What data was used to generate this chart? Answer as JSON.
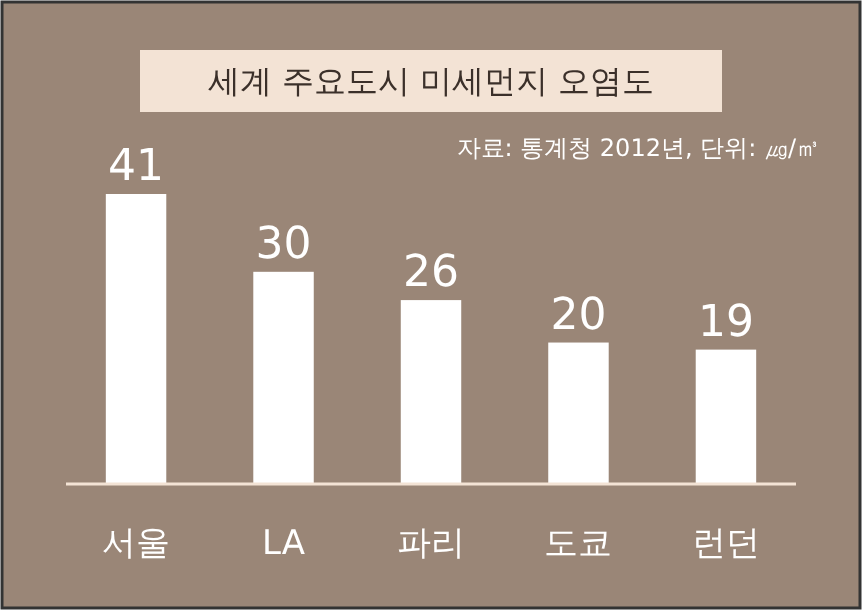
{
  "chart_data": {
    "type": "bar",
    "title": "세계 주요도시 미세먼지 오염도",
    "subtitle": "자료: 통계청 2012년, 단위: ㎍/㎥",
    "categories": [
      "서울",
      "LA",
      "파리",
      "도쿄",
      "런던"
    ],
    "values": [
      41,
      30,
      26,
      20,
      19
    ],
    "color": "#ffffff",
    "data_labels": true
  }
}
